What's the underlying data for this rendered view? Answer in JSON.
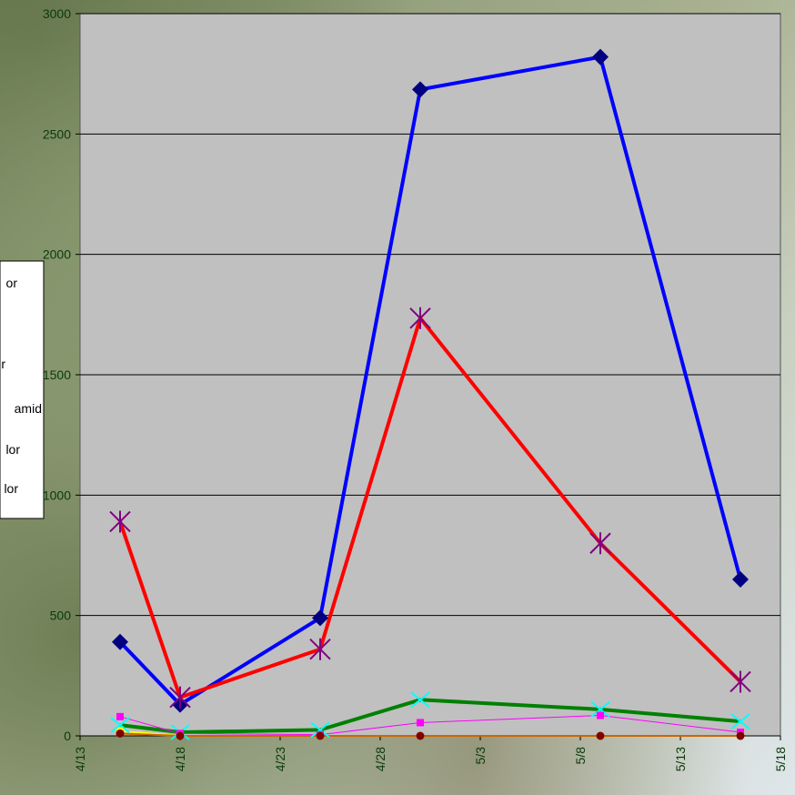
{
  "chart_data": {
    "type": "line",
    "x": [
      "4/15",
      "4/18",
      "4/25",
      "4/30",
      "5/9",
      "5/16"
    ],
    "xlim": [
      "4/13",
      "5/18"
    ],
    "xticks": [
      "4/13",
      "4/18",
      "4/23",
      "4/28",
      "5/3",
      "5/8",
      "5/13",
      "5/18"
    ],
    "ylim": [
      0,
      3000
    ],
    "yticks": [
      0,
      500,
      1000,
      1500,
      2000,
      2500,
      3000
    ],
    "grid": true,
    "legend": "left",
    "series": [
      {
        "name": "or",
        "color": "#0000ff",
        "marker": "diamond",
        "marker_color": "#000080",
        "width": 4,
        "values": [
          390,
          130,
          490,
          2685,
          2820,
          650
        ]
      },
      {
        "name": null,
        "color": "#ff0000",
        "marker": "asterisk",
        "marker_color": "#800080",
        "width": 4,
        "values": [
          890,
          160,
          360,
          1735,
          800,
          225
        ]
      },
      {
        "name": "r",
        "color": "#008000",
        "marker": "x",
        "marker_color": "#00ffff",
        "width": 4,
        "values": [
          45,
          15,
          25,
          150,
          110,
          60
        ]
      },
      {
        "name": "amid",
        "color": "#ff00ff",
        "marker": "square",
        "marker_color": "#ff00ff",
        "width": 1,
        "values": [
          80,
          10,
          5,
          55,
          85,
          15
        ]
      },
      {
        "name": "lor",
        "color": "#ffff00",
        "marker": "circle",
        "marker_color": "#ffff00",
        "width": 2,
        "values": [
          20,
          0,
          0,
          0,
          0,
          0
        ]
      },
      {
        "name": "lor",
        "color": "#cc6600",
        "marker": "circle",
        "marker_color": "#800000",
        "width": 2,
        "values": [
          10,
          0,
          0,
          0,
          0,
          0
        ]
      }
    ]
  }
}
